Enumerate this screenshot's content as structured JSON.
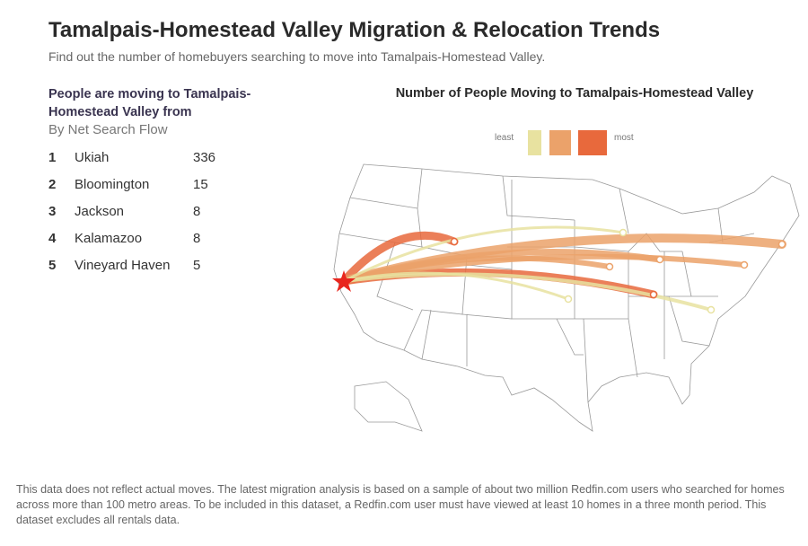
{
  "header": {
    "title": "Tamalpais-Homestead Valley Migration & Relocation Trends",
    "subtitle": "Find out the number of homebuyers searching to move into Tamalpais-Homestead Valley."
  },
  "list": {
    "heading": "People are moving to Tamalpais-Homestead Valley from",
    "subheading": "By Net Search Flow",
    "items": [
      {
        "rank": "1",
        "name": "Ukiah",
        "value": "336"
      },
      {
        "rank": "2",
        "name": "Bloomington",
        "value": "15"
      },
      {
        "rank": "3",
        "name": "Jackson",
        "value": "8"
      },
      {
        "rank": "4",
        "name": "Kalamazoo",
        "value": "8"
      },
      {
        "rank": "5",
        "name": "Vineyard Haven",
        "value": "5"
      }
    ]
  },
  "map": {
    "title": "Number of People Moving to Tamalpais-Homestead Valley",
    "legend": {
      "least": "least",
      "most": "most",
      "colors": [
        "#e8e2a0",
        "#eba26a",
        "#e8693c"
      ]
    },
    "origin_color": "#e8261e"
  },
  "footer": {
    "text": "This data does not reflect actual moves. The latest migration analysis is based on a sample of about two million Redfin.com users who searched for homes across more than 100 metro areas. To be included in this dataset, a Redfin.com user must have viewed at least 10 homes in a three month period. This dataset excludes all rentals data."
  }
}
